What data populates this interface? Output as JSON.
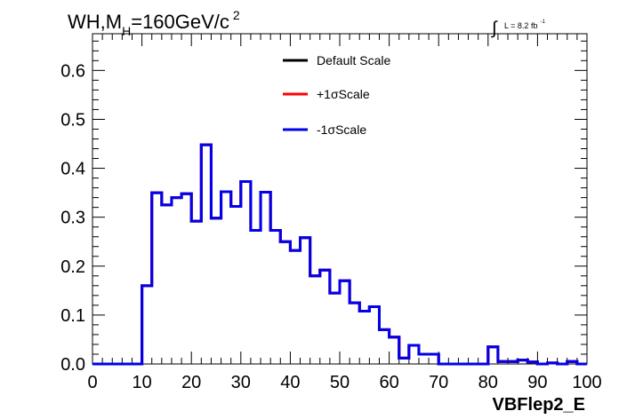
{
  "chart_data": {
    "type": "histogram",
    "title_parts": {
      "pre": "WH,M",
      "sub": "H",
      "mid": "=160GeV/c",
      "sup": "2"
    },
    "lumi": {
      "integral": "∫",
      "text": "L = 8.2 fb",
      "sup": "-1"
    },
    "xlabel": "VBFlep2_E",
    "ylabel": "",
    "xlim": [
      0,
      100
    ],
    "ylim": [
      0,
      0.675
    ],
    "x_ticks": [
      0,
      10,
      20,
      30,
      40,
      50,
      60,
      70,
      80,
      90,
      100
    ],
    "y_ticks": [
      "0.0",
      "0.1",
      "0.2",
      "0.3",
      "0.4",
      "0.5",
      "0.6"
    ],
    "y_tick_values": [
      0,
      0.1,
      0.2,
      0.3,
      0.4,
      0.5,
      0.6
    ],
    "grid": false,
    "legend_position": "top-center",
    "bin_edges": [
      0,
      2,
      4,
      6,
      8,
      10,
      12,
      14,
      16,
      18,
      20,
      22,
      24,
      26,
      28,
      30,
      32,
      34,
      36,
      38,
      40,
      42,
      44,
      46,
      48,
      50,
      52,
      54,
      56,
      58,
      60,
      62,
      64,
      66,
      68,
      70,
      72,
      74,
      76,
      78,
      80,
      82,
      84,
      86,
      88,
      90,
      92,
      94,
      96,
      98,
      100
    ],
    "series": [
      {
        "name": "Default Scale",
        "color": "#000000",
        "values": [
          0,
          0,
          0,
          0,
          0,
          0.16,
          0.35,
          0.325,
          0.34,
          0.348,
          0.292,
          0.448,
          0.298,
          0.352,
          0.322,
          0.373,
          0.273,
          0.351,
          0.273,
          0.25,
          0.232,
          0.258,
          0.18,
          0.192,
          0.145,
          0.17,
          0.125,
          0.108,
          0.117,
          0.07,
          0.055,
          0.012,
          0.038,
          0.02,
          0.02,
          0.0,
          0.0,
          0.0,
          0.0,
          0.0,
          0.035,
          0.005,
          0.005,
          0.008,
          0.004,
          0.0,
          0.002,
          0.0,
          0.005,
          0.0
        ]
      },
      {
        "name": "+1σScale",
        "color": "#ff0000",
        "values": [
          0,
          0,
          0,
          0,
          0,
          0.16,
          0.35,
          0.325,
          0.34,
          0.348,
          0.292,
          0.448,
          0.298,
          0.352,
          0.322,
          0.373,
          0.273,
          0.351,
          0.273,
          0.25,
          0.232,
          0.258,
          0.18,
          0.192,
          0.145,
          0.17,
          0.125,
          0.108,
          0.117,
          0.07,
          0.055,
          0.012,
          0.038,
          0.02,
          0.02,
          0.0,
          0.0,
          0.0,
          0.0,
          0.0,
          0.035,
          0.005,
          0.005,
          0.008,
          0.004,
          0.0,
          0.002,
          0.0,
          0.005,
          0.0
        ]
      },
      {
        "name": "-1σScale",
        "color": "#0000ee",
        "values": [
          0,
          0,
          0,
          0,
          0,
          0.16,
          0.35,
          0.325,
          0.34,
          0.348,
          0.292,
          0.448,
          0.298,
          0.352,
          0.322,
          0.373,
          0.273,
          0.351,
          0.273,
          0.25,
          0.232,
          0.258,
          0.18,
          0.192,
          0.145,
          0.17,
          0.125,
          0.108,
          0.117,
          0.07,
          0.055,
          0.012,
          0.038,
          0.02,
          0.02,
          0.0,
          0.0,
          0.0,
          0.0,
          0.0,
          0.035,
          0.005,
          0.005,
          0.008,
          0.004,
          0.0,
          0.002,
          0.0,
          0.005,
          0.0
        ]
      }
    ]
  }
}
